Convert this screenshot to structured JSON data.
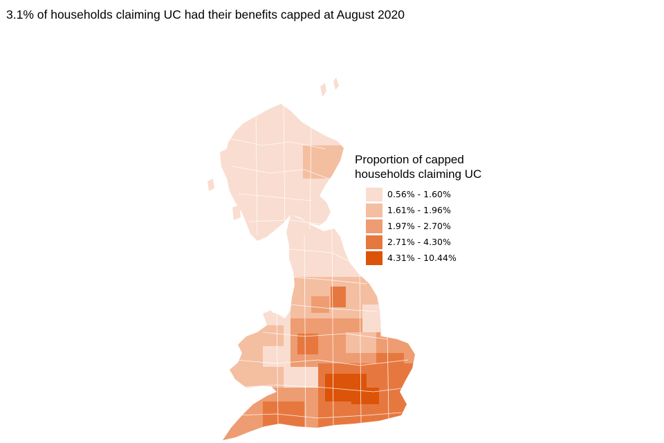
{
  "title": "3.1% of households claiming UC had their benefits capped at August 2020",
  "legend": {
    "title_line1": "Proportion of capped",
    "title_line2": "households claiming UC",
    "items": [
      {
        "label": "0.56% - 1.60%",
        "color": "#f9ddd0"
      },
      {
        "label": "1.61% - 1.96%",
        "color": "#f4bea1"
      },
      {
        "label": "1.97% - 2.70%",
        "color": "#ee9c72"
      },
      {
        "label": "2.71% - 4.30%",
        "color": "#e6783f"
      },
      {
        "label": "4.31% - 10.44%",
        "color": "#dc5409"
      }
    ]
  },
  "colors": {
    "outline": "#ffffff",
    "background": "#ffffff"
  }
}
